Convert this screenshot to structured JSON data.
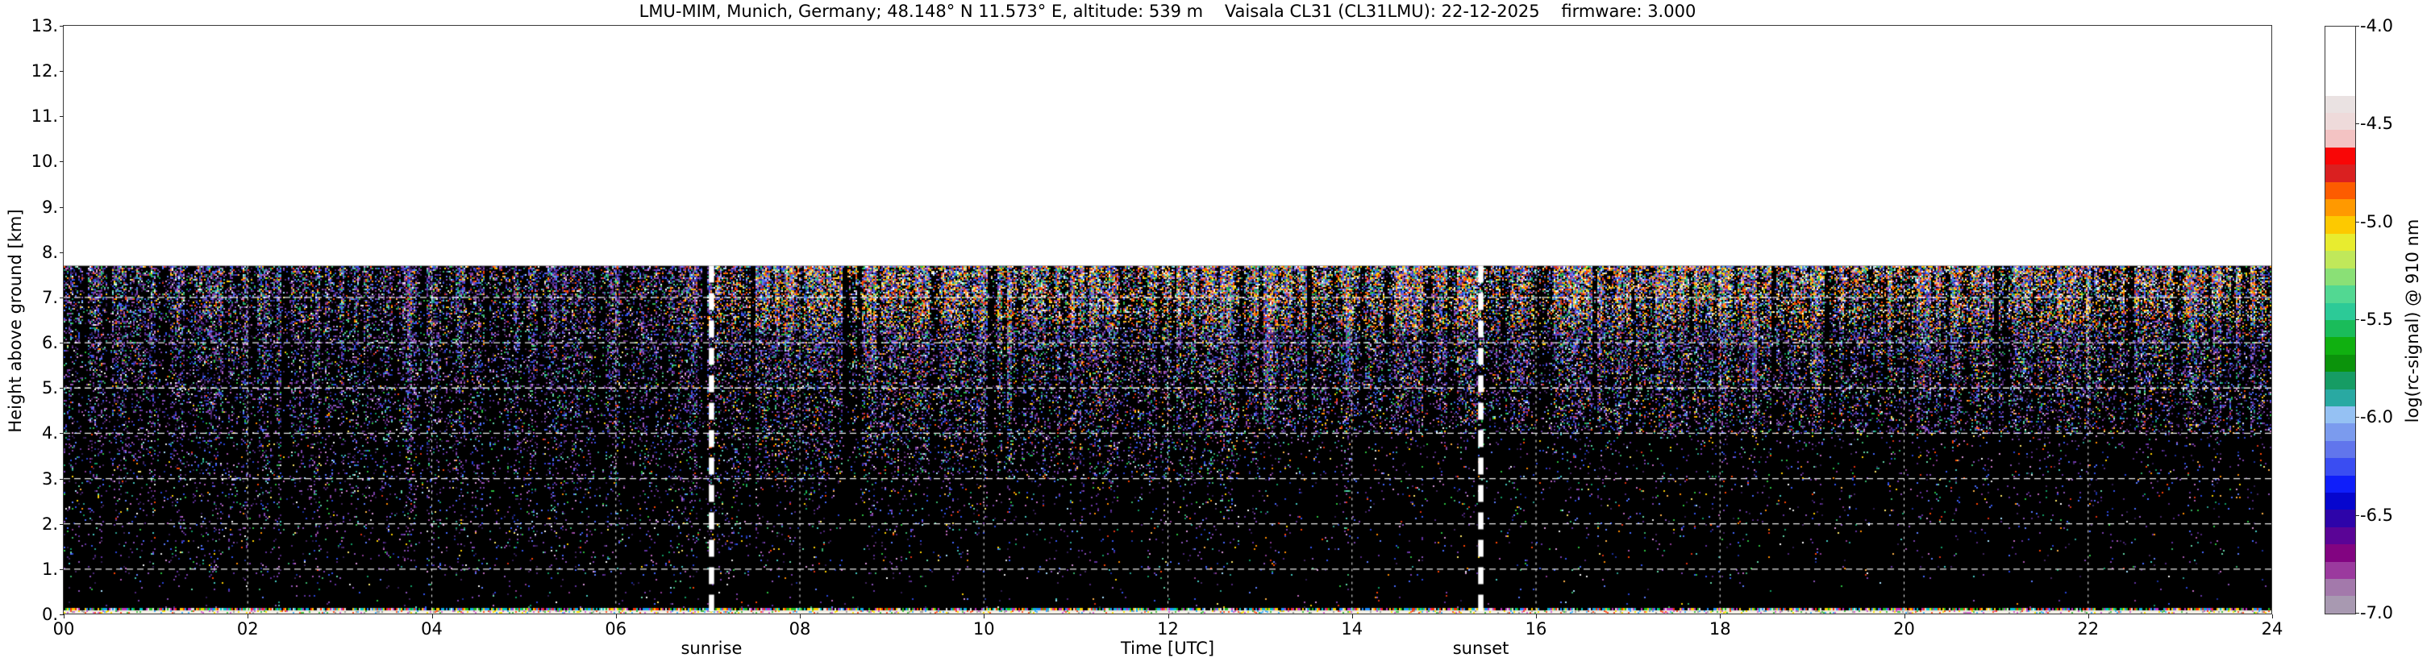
{
  "figure": {
    "title": "LMU-MIM, Munich, Germany; 48.148° N 11.573° E, altitude: 539 m    Vaisala CL31 (CL31LMU): 22-12-2025    firmware: 3.000"
  },
  "axes": {
    "x": {
      "label": "Time [UTC]",
      "range_hours": [
        0,
        24
      ],
      "ticks": [
        "00",
        "02",
        "04",
        "06",
        "08",
        "10",
        "12",
        "14",
        "16",
        "18",
        "20",
        "22",
        "24"
      ]
    },
    "y": {
      "label": "Height above ground [km]",
      "range_km": [
        0,
        13
      ],
      "ticks": [
        "0.",
        "1.",
        "2.",
        "3.",
        "4.",
        "5.",
        "6.",
        "7.",
        "8.",
        "9.",
        "10.",
        "11.",
        "12.",
        "13."
      ]
    }
  },
  "colorbar": {
    "label": "log(rc-signal) @ 910 nm",
    "ticks": [
      "-4.0",
      "-4.5",
      "-5.0",
      "-5.5",
      "-6.0",
      "-6.5",
      "-7.0"
    ],
    "colors": [
      "#ffffff",
      "#ffffff",
      "#ffffff",
      "#ffffff",
      "#eae2e2",
      "#eedada",
      "#f3c3c3",
      "#f90606",
      "#da2020",
      "#fd5c00",
      "#ff9900",
      "#fdc900",
      "#e8ec2f",
      "#c0e85a",
      "#8ae076",
      "#52d892",
      "#2cca97",
      "#1abc5a",
      "#10b010",
      "#0b930b",
      "#169c64",
      "#29a9a2",
      "#95c1f3",
      "#7b9bee",
      "#6175ec",
      "#3a4df2",
      "#0f1efa",
      "#0606ce",
      "#2d04a9",
      "#5a0496",
      "#820481",
      "#9b3a9e",
      "#a379ab",
      "#a899b1"
    ]
  },
  "annotations": {
    "sunrise": {
      "label": "sunrise",
      "time_utc_hours": 7.04
    },
    "sunset": {
      "label": "sunset",
      "time_utc_hours": 15.4
    }
  },
  "chart_data": {
    "type": "heatmap",
    "title": "LMU-MIM, Munich, Germany; 48.148° N 11.573° E, altitude: 539 m    Vaisala CL31 (CL31LMU): 22-12-2025    firmware: 3.000",
    "xlabel": "Time [UTC]",
    "ylabel": "Height above ground [km]",
    "xlim_hours": [
      0,
      24
    ],
    "ylim_km": [
      0,
      13
    ],
    "x_tick_hours": [
      0,
      2,
      4,
      6,
      8,
      10,
      12,
      14,
      16,
      18,
      20,
      22,
      24
    ],
    "y_tick_km": [
      0,
      1,
      2,
      3,
      4,
      5,
      6,
      7,
      8,
      9,
      10,
      11,
      12,
      13
    ],
    "colorbar_label": "log(rc-signal) @ 910 nm",
    "colorbar_range": [
      -4.0,
      -7.0
    ],
    "colorbar_tick_values": [
      -4.0,
      -4.5,
      -5.0,
      -5.5,
      -6.0,
      -6.5,
      -7.0
    ],
    "instrument_max_range_km": 7.7,
    "sunrise_utc_hours": 7.04,
    "sunset_utc_hours": 15.4,
    "grid": true,
    "description": "Ceilometer range-corrected backscatter quicklook for one full day (00-24 UTC). Signal is dominated by noise speckle up to the 7.7 km instrument range; no data (white) above 7.7 km. Noise density and warm-colored speckle increase with height and during daylight hours. Low levels (below ~4 km) are nearly black (weak signal), especially after ~13 UTC. A thin strong-return layer (white, log(rc-signal) near -4) lies directly above the surface. Thick white dashed vertical lines mark sunrise (~07:02 UTC) and sunset (~15:24 UTC); white dashed gridlines every 1 km and every 2 h."
  },
  "noise": {
    "palette_purple": [
      "#6030a0",
      "#50267e",
      "#7a3fae",
      "#41245f",
      "#8a52b8",
      "#2e1b52"
    ],
    "palette_blue": [
      "#2743d8",
      "#4468ff",
      "#5b7cff",
      "#1b2f9e",
      "#3355ee"
    ],
    "palette_magenta": [
      "#a855b0",
      "#c06ac0",
      "#8a3a92",
      "#d898d8"
    ],
    "palette_teal": [
      "#2a9d8f",
      "#36b06a",
      "#2bbf3f",
      "#63d6a8",
      "#119c63",
      "#45c8c0"
    ],
    "palette_bright": [
      "#e8e8e8",
      "#ffffff",
      "#ffe96a",
      "#a8e0ff"
    ],
    "palette_warm": [
      "#ff8c00",
      "#ffd000",
      "#ff4500",
      "#ffb347",
      "#e03010"
    ],
    "surface_vivid": [
      "#ff3000",
      "#ffd000",
      "#20c020",
      "#2090ff",
      "#e0e0e0",
      "#c030c0",
      "#00c8c8"
    ],
    "surface_base_color": "#f0ede4",
    "surface_speckle": [
      "#ffe000",
      "#ff5020",
      "#40b0ff",
      "#40c040",
      "#9a9a9a",
      "#d060d0"
    ],
    "gridline_color": "#ffffff",
    "sunline_color": "#ffffff",
    "background_data": "#000000",
    "background_nodata": "#ffffff"
  }
}
